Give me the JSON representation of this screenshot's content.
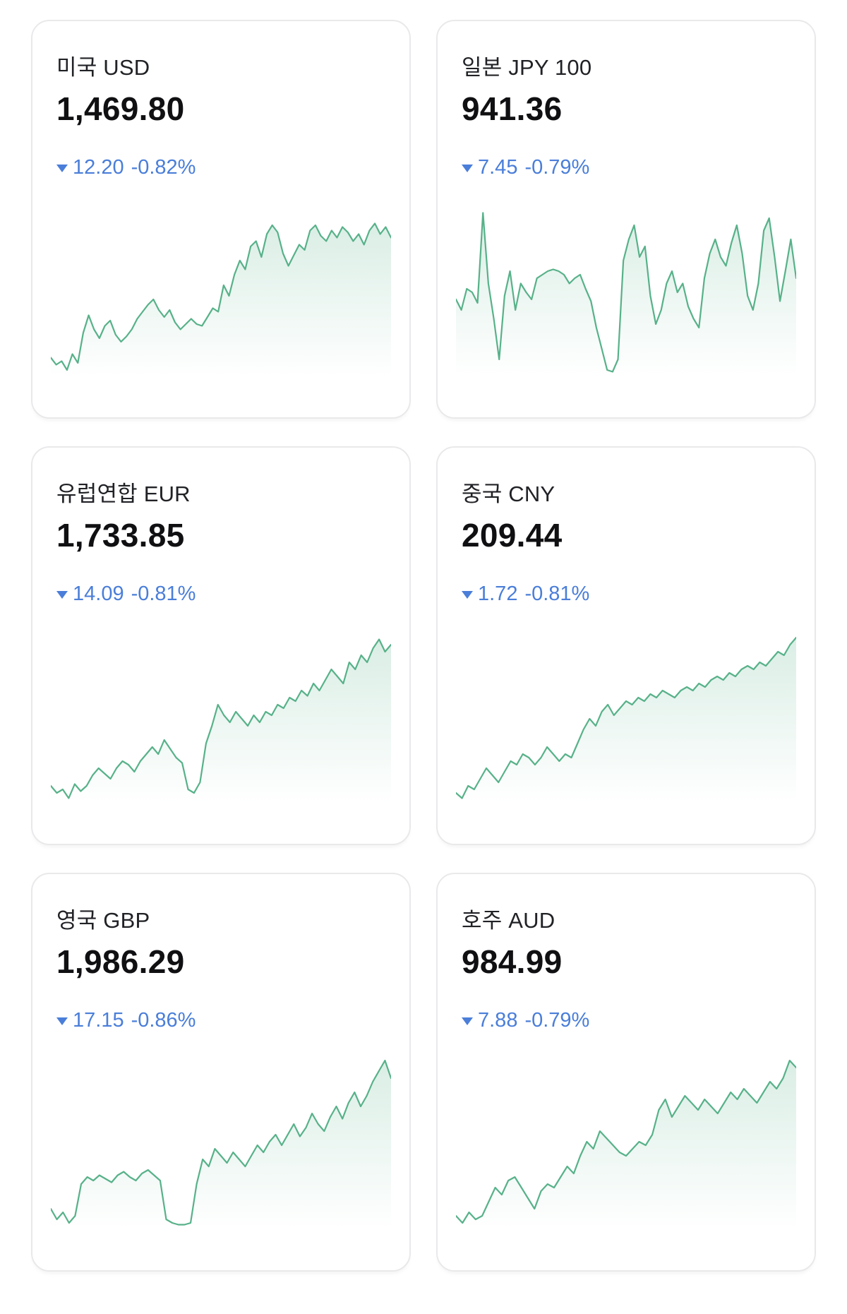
{
  "theme": {
    "background": "#ffffff",
    "card_border_color": "#e9e9eb",
    "title_color": "#212226",
    "value_color": "#101013",
    "change_color": "#4a7ed9",
    "chart_line_color": "#57b189",
    "chart_fill_color": "#57b189"
  },
  "cards": [
    {
      "title": "미국 USD",
      "value": "1,469.80",
      "change": {
        "direction": "down",
        "amount": "12.20",
        "percent": "-0.82%"
      }
    },
    {
      "title": "일본 JPY 100",
      "value": "941.36",
      "change": {
        "direction": "down",
        "amount": "7.45",
        "percent": "-0.79%"
      }
    },
    {
      "title": "유럽연합 EUR",
      "value": "1,733.85",
      "change": {
        "direction": "down",
        "amount": "14.09",
        "percent": "-0.81%"
      }
    },
    {
      "title": "중국 CNY",
      "value": "209.44",
      "change": {
        "direction": "down",
        "amount": "1.72",
        "percent": "-0.81%"
      }
    },
    {
      "title": "영국 GBP",
      "value": "1,986.29",
      "change": {
        "direction": "down",
        "amount": "17.15",
        "percent": "-0.86%"
      }
    },
    {
      "title": "호주 AUD",
      "value": "984.99",
      "change": {
        "direction": "down",
        "amount": "7.88",
        "percent": "-0.79%"
      }
    }
  ],
  "chart_data": [
    {
      "type": "area",
      "name": "미국 USD sparkline",
      "legend_position": "none",
      "grid": false,
      "values": [
        13,
        9,
        11,
        6,
        15,
        10,
        27,
        37,
        29,
        24,
        31,
        34,
        26,
        22,
        25,
        29,
        35,
        39,
        43,
        46,
        40,
        36,
        40,
        33,
        29,
        32,
        35,
        32,
        31,
        36,
        41,
        39,
        54,
        48,
        60,
        68,
        63,
        76,
        79,
        70,
        83,
        88,
        84,
        72,
        65,
        71,
        77,
        74,
        85,
        88,
        82,
        79,
        85,
        81,
        87,
        84,
        79,
        83,
        77,
        85,
        89,
        83,
        87,
        81
      ]
    },
    {
      "type": "area",
      "name": "일본 JPY 100 sparkline",
      "legend_position": "none",
      "grid": false,
      "values": [
        46,
        40,
        52,
        50,
        44,
        95,
        55,
        35,
        12,
        48,
        62,
        40,
        55,
        50,
        46,
        58,
        60,
        62,
        63,
        62,
        60,
        55,
        58,
        60,
        52,
        45,
        30,
        18,
        6,
        5,
        12,
        68,
        80,
        88,
        70,
        76,
        48,
        32,
        40,
        55,
        62,
        50,
        55,
        42,
        35,
        30,
        58,
        72,
        80,
        70,
        65,
        78,
        88,
        72,
        48,
        40,
        55,
        85,
        92,
        70,
        45,
        62,
        80,
        58
      ]
    },
    {
      "type": "area",
      "name": "유럽연합 EUR sparkline",
      "legend_position": "none",
      "grid": false,
      "values": [
        12,
        8,
        10,
        5,
        13,
        9,
        12,
        18,
        22,
        19,
        16,
        22,
        26,
        24,
        20,
        26,
        30,
        34,
        30,
        38,
        33,
        28,
        25,
        10,
        8,
        14,
        36,
        46,
        58,
        52,
        48,
        54,
        50,
        46,
        52,
        48,
        54,
        52,
        58,
        56,
        62,
        60,
        66,
        63,
        70,
        66,
        72,
        78,
        74,
        70,
        82,
        78,
        86,
        82,
        90,
        95,
        88,
        92
      ]
    },
    {
      "type": "area",
      "name": "중국 CNY sparkline",
      "legend_position": "none",
      "grid": false,
      "values": [
        8,
        5,
        12,
        10,
        16,
        22,
        18,
        14,
        20,
        26,
        24,
        30,
        28,
        24,
        28,
        34,
        30,
        26,
        30,
        28,
        36,
        44,
        50,
        46,
        54,
        58,
        52,
        56,
        60,
        58,
        62,
        60,
        64,
        62,
        66,
        64,
        62,
        66,
        68,
        66,
        70,
        68,
        72,
        74,
        72,
        76,
        74,
        78,
        80,
        78,
        82,
        80,
        84,
        88,
        86,
        92,
        96
      ]
    },
    {
      "type": "area",
      "name": "영국 GBP sparkline",
      "legend_position": "none",
      "grid": false,
      "values": [
        14,
        8,
        12,
        6,
        10,
        28,
        32,
        30,
        33,
        31,
        29,
        33,
        35,
        32,
        30,
        34,
        36,
        33,
        30,
        8,
        6,
        5,
        5,
        6,
        28,
        42,
        38,
        48,
        44,
        40,
        46,
        42,
        38,
        44,
        50,
        46,
        52,
        56,
        50,
        56,
        62,
        55,
        60,
        68,
        62,
        58,
        66,
        72,
        65,
        74,
        80,
        72,
        78,
        86,
        92,
        98,
        88
      ]
    },
    {
      "type": "area",
      "name": "호주 AUD sparkline",
      "legend_position": "none",
      "grid": false,
      "values": [
        10,
        6,
        12,
        8,
        10,
        18,
        26,
        22,
        30,
        32,
        26,
        20,
        14,
        24,
        28,
        26,
        32,
        38,
        34,
        44,
        52,
        48,
        58,
        54,
        50,
        46,
        44,
        48,
        52,
        50,
        56,
        70,
        76,
        66,
        72,
        78,
        74,
        70,
        76,
        72,
        68,
        74,
        80,
        76,
        82,
        78,
        74,
        80,
        86,
        82,
        88,
        98,
        94
      ]
    }
  ]
}
